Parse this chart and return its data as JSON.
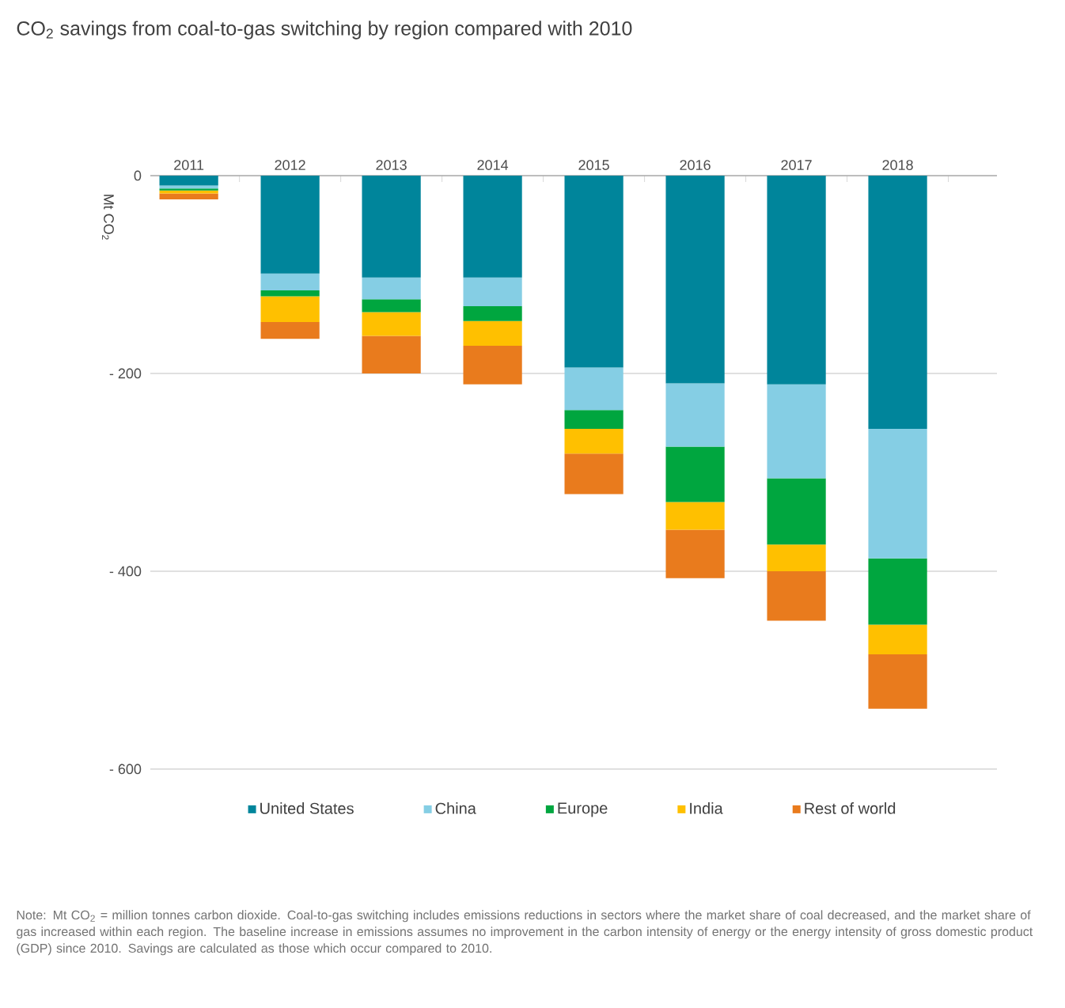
{
  "chart_data": {
    "type": "bar",
    "stacked": true,
    "title": "CO$_{2}$ savings from coal-to-gas switching by region compared with 2010",
    "ylabel": "Mt CO$_{2}$",
    "categories": [
      "2011",
      "2012",
      "2013",
      "2014",
      "2015",
      "2016",
      "2017",
      "2018"
    ],
    "series": [
      {
        "name": "United States",
        "color": "#00859b",
        "values": [
          -10,
          -99,
          -103,
          -103,
          -194,
          -210,
          -211,
          -256
        ]
      },
      {
        "name": "China",
        "color": "#85cee4",
        "values": [
          -3,
          -17,
          -22,
          -29,
          -43,
          -64,
          -95,
          -131
        ]
      },
      {
        "name": "Europe",
        "color": "#00a63f",
        "values": [
          -2,
          -6,
          -13,
          -15,
          -19,
          -56,
          -67,
          -67
        ]
      },
      {
        "name": "India",
        "color": "#ffc000",
        "values": [
          -3,
          -26,
          -24,
          -25,
          -25,
          -28,
          -27,
          -30
        ]
      },
      {
        "name": "Rest of world",
        "color": "#e97b1d",
        "values": [
          -6,
          -17,
          -38,
          -39,
          -41,
          -49,
          -50,
          -55
        ]
      }
    ],
    "ylim": [
      -600,
      0
    ],
    "yticks": [
      0,
      {
        "value": -200,
        "label": "- 200"
      },
      {
        "value": -400,
        "label": "- 400"
      },
      {
        "value": -600,
        "label": "- 600"
      }
    ],
    "grid": "y",
    "legend": "bottom",
    "annotations": [
      "Note: Mt CO$_{2}$ = million tonnes carbon dioxide. Coal-to-gas switching includes emissions reductions in sectors where the market share of coal decreased, and the market share of gas increased within each region. The baseline increase in emissions assumes no improvement in the carbon intensity of energy or the energy intensity of gross domestic product (GDP) since 2010. Savings are calculated as those which occur compared to 2010."
    ]
  }
}
